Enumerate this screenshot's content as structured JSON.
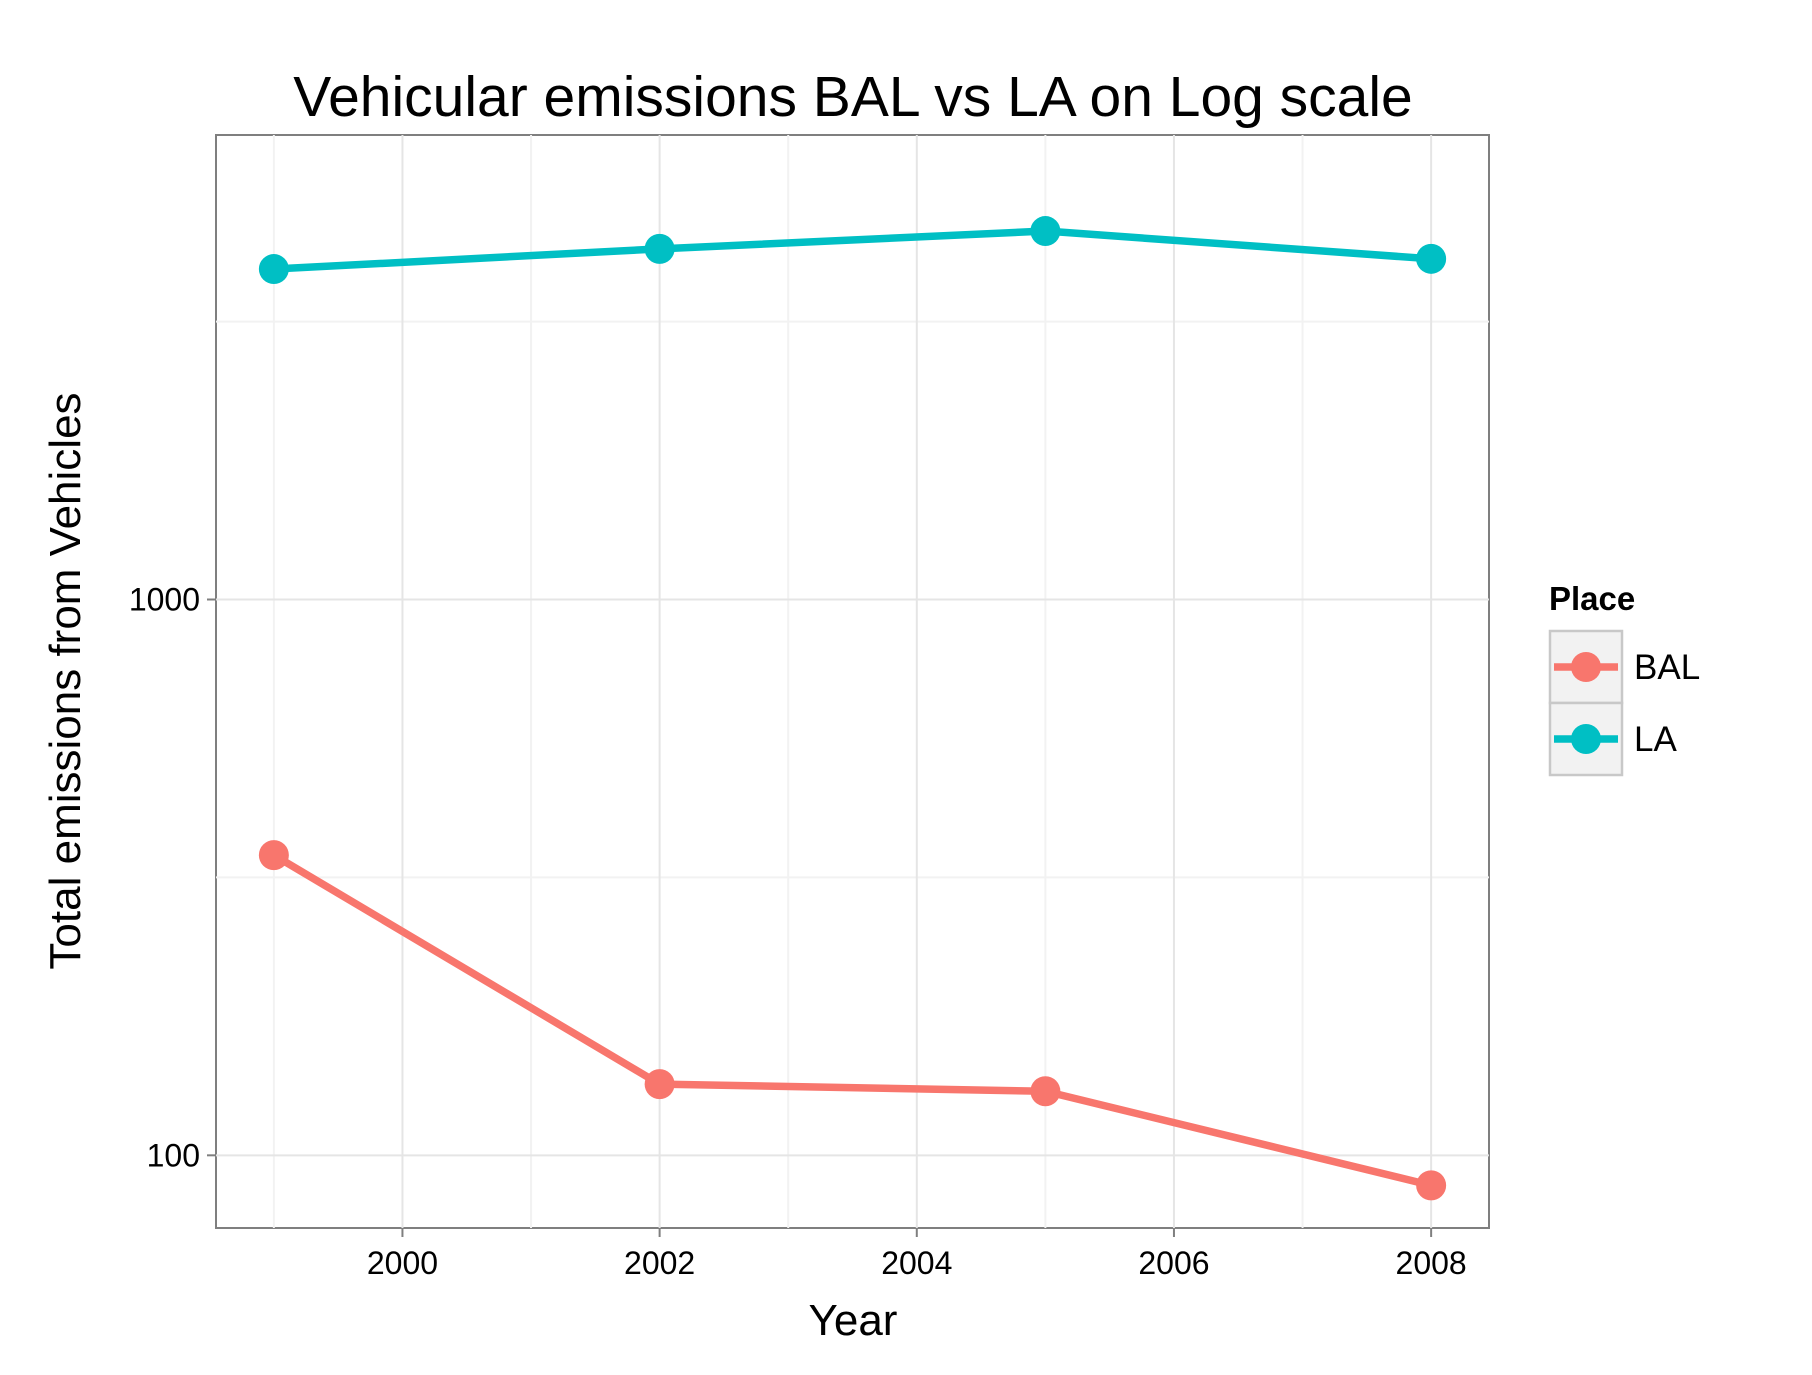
{
  "chart_data": {
    "type": "line",
    "title": "Vehicular emissions BAL vs LA on Log scale",
    "xlabel": "Year",
    "ylabel": "Total emissions from Vehicles",
    "x": [
      1999,
      2002,
      2005,
      2008
    ],
    "x_ticks": [
      "2000",
      "2002",
      "2004",
      "2006",
      "2008"
    ],
    "y_ticks": [
      "100",
      "1000"
    ],
    "y_scale": "log10",
    "xlim": [
      1998.55,
      2008.45
    ],
    "ylim": [
      74,
      6850
    ],
    "grid": true,
    "legend": {
      "title": "Place",
      "position": "right"
    },
    "series": [
      {
        "name": "BAL",
        "color": "#F8766D",
        "values": [
          346.8,
          134.3,
          130.4,
          88.3
        ]
      },
      {
        "name": "LA",
        "color": "#00BFC4",
        "values": [
          3931.1,
          4274.0,
          4601.4,
          4101.3
        ]
      }
    ]
  }
}
